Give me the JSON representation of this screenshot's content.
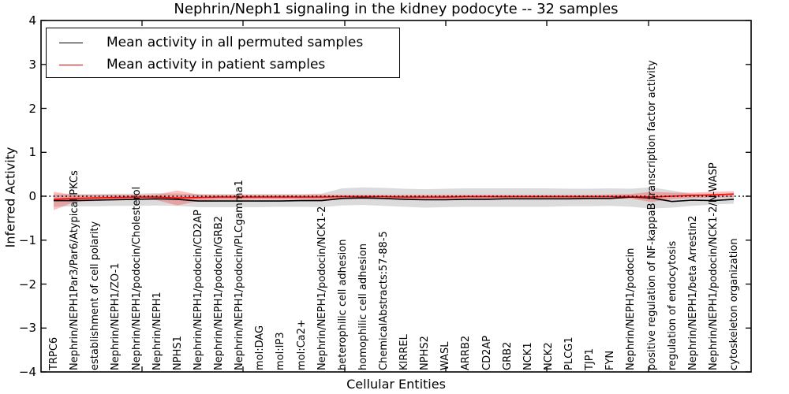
{
  "figure": {
    "title": "Nephrin/Neph1 signaling in the kidney podocyte -- 32 samples",
    "xlabel": "Cellular Entities",
    "ylabel": "Inferred Activity"
  },
  "legend": {
    "items": [
      {
        "label": "Mean activity in all permuted samples",
        "color": "#000000"
      },
      {
        "label": "Mean activity in patient samples",
        "color": "#ff0000"
      }
    ]
  },
  "chart_data": {
    "type": "line",
    "title": "Nephrin/Neph1 signaling in the kidney podocyte -- 32 samples",
    "xlabel": "Cellular Entities",
    "ylabel": "Inferred Activity",
    "ylim": [
      -4,
      4
    ],
    "yticks": [
      4,
      3,
      2,
      1,
      0,
      -1,
      -2,
      -3,
      -4
    ],
    "ytick_labels": [
      "4",
      "3",
      "2",
      "1",
      "0",
      "−1",
      "−2",
      "−3",
      "−4"
    ],
    "grid": false,
    "zero_line": {
      "y": 0,
      "style": "dotted",
      "color": "#000000"
    },
    "legend_position": "upper left",
    "categories": [
      "TRPC6",
      "Nephrin/NEPH1Par3/Par6/Atypical PKCs",
      "establishment of cell polarity",
      "Nephrin/NEPH1/ZO-1",
      "Nephrin/NEPH1/podocin/Cholesterol",
      "Nephrin/NEPH1",
      "NPHS1",
      "Nephrin/NEPH1/podocin/CD2AP",
      "Nephrin/NEPH1/podocin/GRB2",
      "Nephrin/NEPH1/podocin/PLCgamma1",
      "mol:DAG",
      "mol:IP3",
      "mol:Ca2+",
      "Nephrin/NEPH1/podocin/NCK1-2",
      "heterophilic cell adhesion",
      "homophilic cell adhesion",
      "ChemicalAbstracts:57-88-5",
      "KIRREL",
      "NPHS2",
      "WASL",
      "ARRB2",
      "CD2AP",
      "GRB2",
      "NCK1",
      "NCK2",
      "PLCG1",
      "TJP1",
      "FYN",
      "Nephrin/NEPH1/podocin",
      "positive regulation of NF-kappaB transcription factor activity",
      "regulation of endocytosis",
      "Nephrin/NEPH1/beta Arrestin2",
      "Nephrin/NEPH1/podocin/NCK1-2/N-WASP",
      "cytoskeleton organization"
    ],
    "series": [
      {
        "name": "Mean activity in all permuted samples",
        "color": "#000000",
        "band_color": "rgba(0,0,0,0.14)",
        "values": [
          -0.1,
          -0.1,
          -0.09,
          -0.08,
          -0.07,
          -0.06,
          -0.07,
          -0.11,
          -0.11,
          -0.11,
          -0.11,
          -0.11,
          -0.1,
          -0.1,
          -0.05,
          -0.04,
          -0.05,
          -0.07,
          -0.08,
          -0.08,
          -0.07,
          -0.07,
          -0.06,
          -0.06,
          -0.06,
          -0.06,
          -0.05,
          -0.05,
          -0.02,
          -0.04,
          -0.12,
          -0.09,
          -0.1,
          -0.07
        ],
        "band_upper": [
          0.04,
          0.05,
          0.05,
          0.06,
          0.06,
          0.07,
          0.06,
          0.05,
          0.05,
          0.05,
          0.05,
          0.05,
          0.05,
          0.06,
          0.18,
          0.2,
          0.19,
          0.17,
          0.16,
          0.17,
          0.18,
          0.18,
          0.18,
          0.18,
          0.18,
          0.17,
          0.17,
          0.18,
          0.17,
          0.2,
          0.13,
          0.05,
          0.02,
          0.01
        ],
        "band_lower": [
          -0.24,
          -0.23,
          -0.23,
          -0.22,
          -0.22,
          -0.21,
          -0.22,
          -0.25,
          -0.25,
          -0.25,
          -0.25,
          -0.24,
          -0.24,
          -0.25,
          -0.21,
          -0.2,
          -0.22,
          -0.24,
          -0.26,
          -0.25,
          -0.24,
          -0.24,
          -0.24,
          -0.24,
          -0.24,
          -0.23,
          -0.23,
          -0.22,
          -0.24,
          -0.28,
          -0.26,
          -0.22,
          -0.19,
          -0.17
        ]
      },
      {
        "name": "Mean activity in patient samples",
        "color": "#ff0000",
        "band_color": "rgba(255,0,0,0.25)",
        "values": [
          -0.07,
          -0.05,
          -0.04,
          -0.03,
          -0.02,
          -0.02,
          -0.04,
          -0.03,
          -0.02,
          -0.02,
          -0.02,
          -0.02,
          -0.02,
          -0.02,
          -0.01,
          -0.01,
          -0.01,
          -0.02,
          -0.02,
          -0.02,
          -0.01,
          -0.01,
          -0.01,
          -0.01,
          -0.01,
          -0.01,
          -0.01,
          -0.01,
          -0.01,
          -0.02,
          0.0,
          0.02,
          0.03,
          0.05
        ],
        "band_upper": [
          0.1,
          0.03,
          0.03,
          0.03,
          0.03,
          0.04,
          0.13,
          0.04,
          0.03,
          0.03,
          0.03,
          0.03,
          0.03,
          0.04,
          0.03,
          0.03,
          0.03,
          0.03,
          0.03,
          0.03,
          0.03,
          0.03,
          0.03,
          0.03,
          0.03,
          0.03,
          0.03,
          0.04,
          0.05,
          0.1,
          0.08,
          0.08,
          0.1,
          0.11
        ],
        "band_lower": [
          -0.32,
          -0.13,
          -0.11,
          -0.09,
          -0.08,
          -0.09,
          -0.21,
          -0.11,
          -0.08,
          -0.08,
          -0.07,
          -0.07,
          -0.07,
          -0.08,
          -0.06,
          -0.06,
          -0.06,
          -0.06,
          -0.07,
          -0.07,
          -0.06,
          -0.06,
          -0.06,
          -0.05,
          -0.05,
          -0.05,
          -0.05,
          -0.05,
          -0.06,
          -0.13,
          -0.07,
          -0.04,
          -0.03,
          -0.02
        ]
      }
    ]
  }
}
